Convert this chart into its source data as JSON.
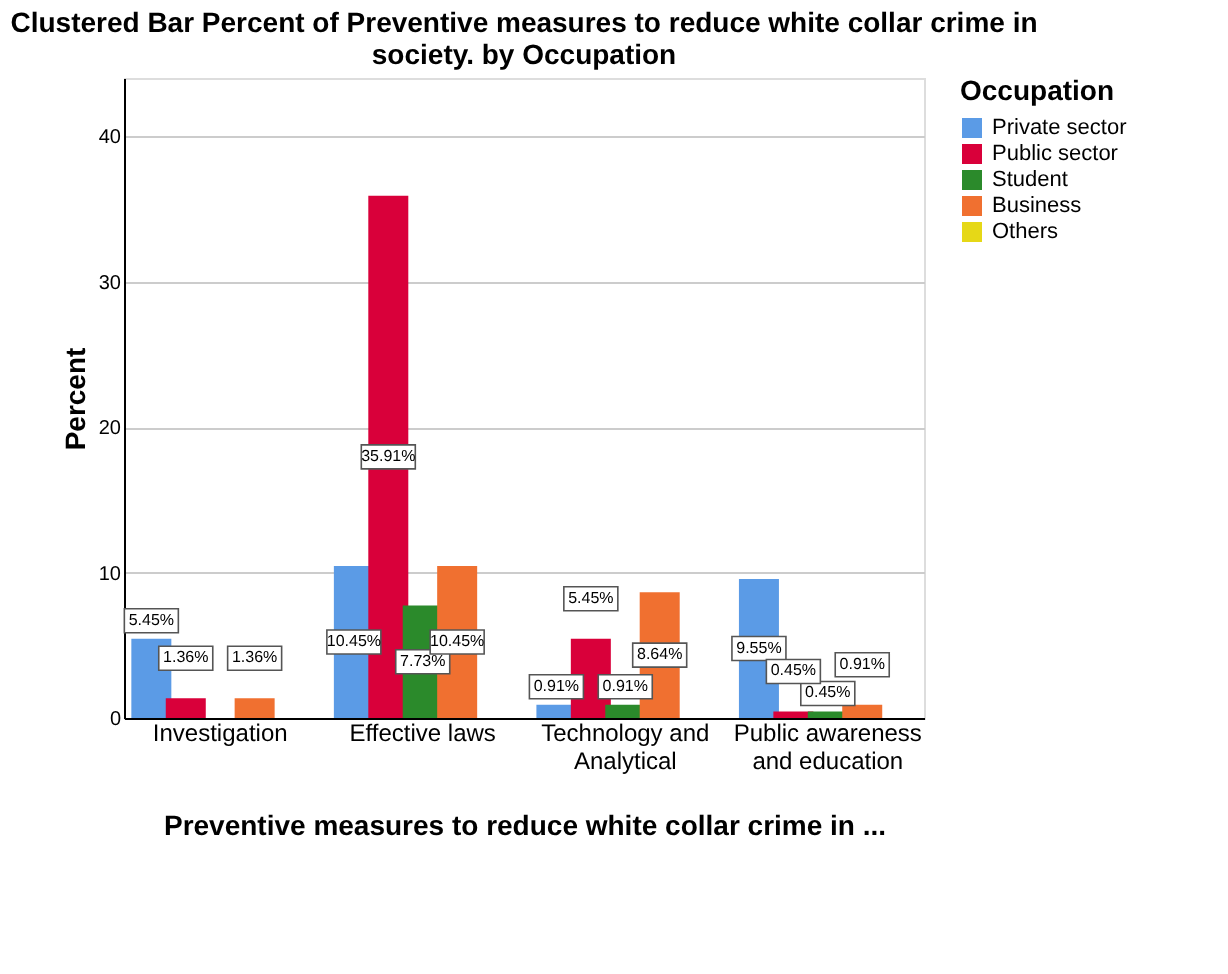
{
  "chart_data": {
    "type": "bar",
    "title": "Clustered Bar Percent of Preventive measures to reduce white collar crime in society. by Occupation",
    "xlabel": "Preventive measures to reduce white collar crime in ...",
    "ylabel": "Percent",
    "legend_title": "Occupation",
    "categories": [
      "Investigation",
      "Effective laws",
      "Technology and Analytical",
      "Public awareness and education"
    ],
    "series": [
      {
        "name": "Private sector",
        "color": "#5b9be6",
        "values": [
          5.45,
          10.45,
          0.91,
          9.55
        ],
        "value_labels": [
          "5.45%",
          "10.45%",
          "0.91%",
          "9.55%"
        ]
      },
      {
        "name": "Public sector",
        "color": "#d9003a",
        "values": [
          1.36,
          35.91,
          5.45,
          0.45
        ],
        "value_labels": [
          "1.36%",
          "35.91%",
          "5.45%",
          "0.45%"
        ]
      },
      {
        "name": "Student",
        "color": "#2b8a2b",
        "values": [
          null,
          7.73,
          0.91,
          0.45
        ],
        "value_labels": [
          null,
          "7.73%",
          "0.91%",
          "0.45%"
        ]
      },
      {
        "name": "Business",
        "color": "#f07030",
        "values": [
          1.36,
          10.45,
          8.64,
          0.91
        ],
        "value_labels": [
          "1.36%",
          "10.45%",
          "8.64%",
          "0.91%"
        ]
      },
      {
        "name": "Others",
        "color": "#e6d817",
        "values": [
          null,
          null,
          null,
          null
        ]
      }
    ],
    "ylim": [
      0,
      44
    ],
    "yticks": [
      0,
      10,
      20,
      30,
      40
    ],
    "grid": "y",
    "legend": "top right"
  }
}
